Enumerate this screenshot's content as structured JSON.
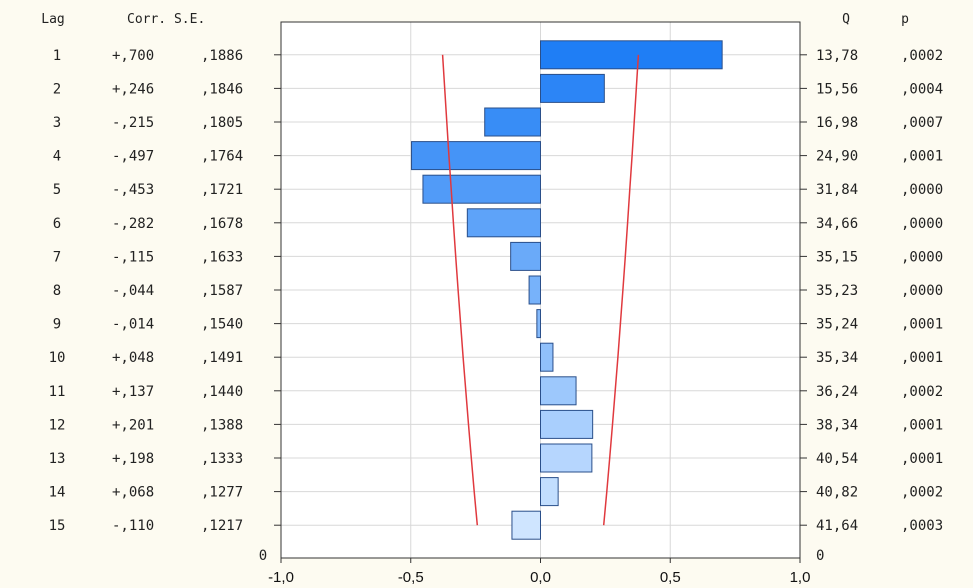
{
  "chart_data": {
    "type": "bar",
    "orientation": "horizontal",
    "headers": {
      "lag": "Lag",
      "corr_se": "Corr. S.E.",
      "q": "Q",
      "p": "p"
    },
    "lags": [
      "1",
      "2",
      "3",
      "4",
      "5",
      "6",
      "7",
      "8",
      "9",
      "10",
      "11",
      "12",
      "13",
      "14",
      "15"
    ],
    "values": [
      0.7,
      0.246,
      -0.215,
      -0.497,
      -0.453,
      -0.282,
      -0.115,
      -0.044,
      -0.014,
      0.048,
      0.137,
      0.201,
      0.198,
      0.068,
      -0.11
    ],
    "corr_labels": [
      "+,700",
      "+,246",
      "-,215",
      "-,497",
      "-,453",
      "-,282",
      "-,115",
      "-,044",
      "-,014",
      "+,048",
      "+,137",
      "+,201",
      "+,198",
      "+,068",
      "-,110"
    ],
    "se_labels": [
      ",1886",
      ",1846",
      ",1805",
      ",1764",
      ",1721",
      ",1678",
      ",1633",
      ",1587",
      ",1540",
      ",1491",
      ",1440",
      ",1388",
      ",1333",
      ",1277",
      ",1217"
    ],
    "se_values": [
      0.1886,
      0.1846,
      0.1805,
      0.1764,
      0.1721,
      0.1678,
      0.1633,
      0.1587,
      0.154,
      0.1491,
      0.144,
      0.1388,
      0.1333,
      0.1277,
      0.1217
    ],
    "q_labels": [
      "13,78",
      "15,56",
      "16,98",
      "24,90",
      "31,84",
      "34,66",
      "35,15",
      "35,23",
      "35,24",
      "35,34",
      "36,24",
      "38,34",
      "40,54",
      "40,82",
      "41,64"
    ],
    "p_labels": [
      ",0002",
      ",0004",
      ",0007",
      ",0001",
      ",0000",
      ",0000",
      ",0000",
      ",0000",
      ",0001",
      ",0001",
      ",0002",
      ",0001",
      ",0001",
      ",0002",
      ",0003"
    ],
    "zero_left": "0",
    "zero_right": "0",
    "x_ticks": [
      -1.0,
      -0.5,
      0.0,
      0.5,
      1.0
    ],
    "x_tick_labels": [
      "-1,0",
      "-0,5",
      "0,0",
      "0,5",
      "1,0"
    ],
    "xlim": [
      -1.0,
      1.0
    ],
    "confidence_limit_multiplier": 2,
    "grid": true,
    "colors": {
      "background": "#fdfbf1",
      "plot_background": "#ffffff",
      "grid": "#d8d8d8",
      "limit_line": "#e0393e",
      "bar_stroke": "#2a4f8a",
      "bar_dark": "#1f7ef5",
      "bar_light": "#cfe5ff"
    }
  }
}
